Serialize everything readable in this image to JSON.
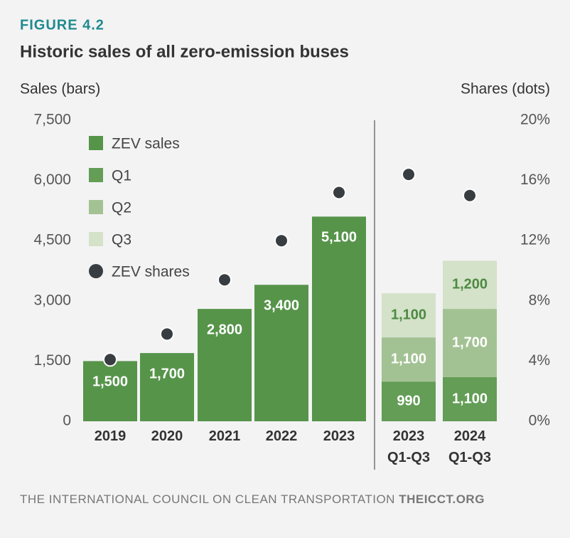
{
  "chart_data": {
    "type": "bar",
    "figure_label": "FIGURE 4.2",
    "title": "Historic sales of all zero-emission buses",
    "y_label": "Sales (bars)",
    "y2_label": "Shares (dots)",
    "categories": [
      "2019",
      "2020",
      "2021",
      "2022",
      "2023",
      "2023 Q1-Q3",
      "2024 Q1-Q3"
    ],
    "series": [
      {
        "name": "ZEV sales",
        "color": "#56944a",
        "values": [
          1500,
          1700,
          2800,
          3400,
          5100,
          null,
          null
        ],
        "value_labels": [
          "1,500",
          "1,700",
          "2,800",
          "3,400",
          "5,100",
          null,
          null
        ]
      },
      {
        "name": "Q1",
        "color": "#639d56",
        "values": [
          null,
          null,
          null,
          null,
          null,
          990,
          1100
        ],
        "value_labels": [
          null,
          null,
          null,
          null,
          null,
          "990",
          "1,100"
        ]
      },
      {
        "name": "Q2",
        "color": "#a3c293",
        "values": [
          null,
          null,
          null,
          null,
          null,
          1100,
          1700
        ],
        "value_labels": [
          null,
          null,
          null,
          null,
          null,
          "1,100",
          "1,700"
        ]
      },
      {
        "name": "Q3",
        "color": "#d4e2c9",
        "values": [
          null,
          null,
          null,
          null,
          null,
          1100,
          1200
        ],
        "value_labels": [
          null,
          null,
          null,
          null,
          null,
          "1,100",
          "1,200"
        ]
      },
      {
        "name": "ZEV shares",
        "color": "#383d42",
        "type": "scatter",
        "axis": "y2",
        "values": [
          4.1,
          5.8,
          9.4,
          12.0,
          15.2,
          16.4,
          15.0
        ]
      }
    ],
    "ylim": [
      0,
      7500
    ],
    "yticks": [
      0,
      {
        "value": 1500,
        "label": "1,500"
      },
      {
        "value": 3000,
        "label": "3,000"
      },
      {
        "value": 4500,
        "label": "4,500"
      },
      {
        "value": 6000,
        "label": "6,000"
      },
      {
        "value": 7500,
        "label": "7,500"
      }
    ],
    "y2lim": [
      0,
      20
    ],
    "y2ticks": [
      {
        "value": 0,
        "label": "0%"
      },
      {
        "value": 4,
        "label": "4%"
      },
      {
        "value": 8,
        "label": "8%"
      },
      {
        "value": 12,
        "label": "12%"
      },
      {
        "value": 16,
        "label": "16%"
      },
      {
        "value": 20,
        "label": "20%"
      }
    ],
    "stacked": true,
    "source": "THE INTERNATIONAL COUNCIL ON CLEAN TRANSPORTATION",
    "source_url": "THEICCT.ORG"
  }
}
